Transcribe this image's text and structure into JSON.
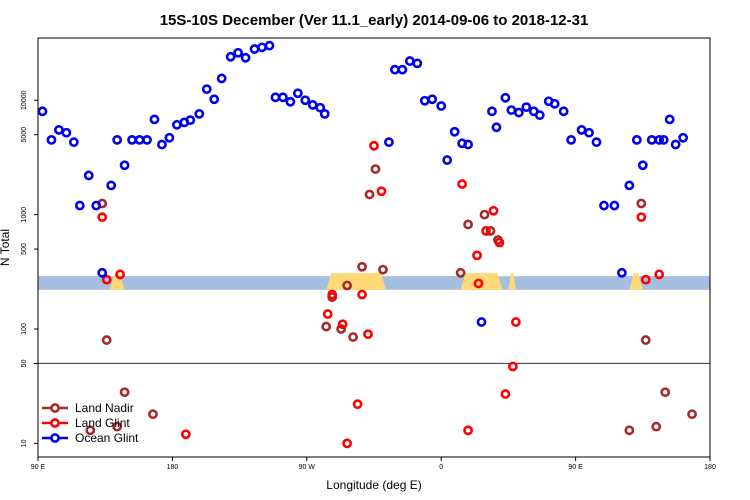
{
  "chart_data": {
    "type": "scatter",
    "title": "15S-10S December (Ver 11.1_early)   2014-09-06 to 2018-12-31",
    "xlabel": "Longitude (deg E)",
    "ylabel": "N Total",
    "y_scale": "log",
    "ylim": [
      7.6,
      35000
    ],
    "xlim": [
      0,
      450
    ],
    "x_ticks": [
      {
        "value": 0,
        "label": "90 E"
      },
      {
        "value": 90,
        "label": "180"
      },
      {
        "value": 180,
        "label": "90 W"
      },
      {
        "value": 270,
        "label": "0"
      },
      {
        "value": 360,
        "label": "90 E"
      },
      {
        "value": 450,
        "label": "180"
      }
    ],
    "y_ticks": [
      {
        "value": 10,
        "label": "10"
      },
      {
        "value": 50,
        "label": "50"
      },
      {
        "value": 100,
        "label": "100"
      },
      {
        "value": 500,
        "label": "500"
      },
      {
        "value": 1000,
        "label": "1000"
      },
      {
        "value": 5000,
        "label": "5000"
      },
      {
        "value": 10000,
        "label": "10000"
      }
    ],
    "reference_line": 50,
    "land_band": {
      "y_range": [
        220,
        290
      ],
      "color": "#a6bfe0",
      "land_color": "#ffd977",
      "land_segments": [
        [
          48,
          58
        ],
        [
          193,
          233
        ],
        [
          283,
          311
        ],
        [
          315,
          320
        ],
        [
          396,
          405
        ]
      ]
    },
    "legend": {
      "position": "bottom-left",
      "entries": [
        {
          "name": "Land Nadir",
          "color": "#a52a2a"
        },
        {
          "name": "Land Glint",
          "color": "#ff0000"
        },
        {
          "name": "Ocean Glint",
          "color": "#0000ee"
        }
      ]
    },
    "series": [
      {
        "name": "Land Nadir",
        "color": "#a52a2a",
        "points": [
          [
            35,
            13
          ],
          [
            43,
            1250
          ],
          [
            46,
            80
          ],
          [
            53,
            14
          ],
          [
            58,
            28
          ],
          [
            77,
            18
          ],
          [
            193,
            105
          ],
          [
            197,
            190
          ],
          [
            203,
            100
          ],
          [
            207,
            240
          ],
          [
            211,
            85
          ],
          [
            217,
            350
          ],
          [
            222,
            1500
          ],
          [
            226,
            2500
          ],
          [
            231,
            330
          ],
          [
            283,
            310
          ],
          [
            288,
            820
          ],
          [
            299,
            1000
          ],
          [
            303,
            720
          ],
          [
            308,
            600
          ],
          [
            396,
            13
          ],
          [
            404,
            1250
          ],
          [
            407,
            80
          ],
          [
            414,
            14
          ],
          [
            420,
            28
          ],
          [
            438,
            18
          ]
        ]
      },
      {
        "name": "Land Glint",
        "color": "#ff0000",
        "points": [
          [
            43,
            950
          ],
          [
            46,
            270
          ],
          [
            55,
            300
          ],
          [
            99,
            12
          ],
          [
            194,
            135
          ],
          [
            197,
            200
          ],
          [
            204,
            110
          ],
          [
            207,
            10
          ],
          [
            214,
            22
          ],
          [
            217,
            200
          ],
          [
            221,
            90
          ],
          [
            225,
            4000
          ],
          [
            230,
            1600
          ],
          [
            284,
            1850
          ],
          [
            288,
            13
          ],
          [
            294,
            440
          ],
          [
            295,
            250
          ],
          [
            300,
            720
          ],
          [
            305,
            1080
          ],
          [
            309,
            570
          ],
          [
            313,
            27
          ],
          [
            318,
            47
          ],
          [
            320,
            115
          ],
          [
            404,
            950
          ],
          [
            407,
            270
          ],
          [
            416,
            300
          ]
        ]
      },
      {
        "name": "Ocean Glint",
        "color": "#0000ee",
        "points": [
          [
            3,
            8000
          ],
          [
            9,
            4500
          ],
          [
            14,
            5500
          ],
          [
            19,
            5200
          ],
          [
            24,
            4300
          ],
          [
            28,
            1200
          ],
          [
            34,
            2200
          ],
          [
            39,
            1200
          ],
          [
            43,
            310
          ],
          [
            49,
            1800
          ],
          [
            53,
            4500
          ],
          [
            58,
            2700
          ],
          [
            63,
            4500
          ],
          [
            68,
            4500
          ],
          [
            73,
            4500
          ],
          [
            78,
            6800
          ],
          [
            83,
            4100
          ],
          [
            88,
            4700
          ],
          [
            93,
            6100
          ],
          [
            98,
            6400
          ],
          [
            102,
            6700
          ],
          [
            108,
            7600
          ],
          [
            113,
            12500
          ],
          [
            118,
            10200
          ],
          [
            123,
            15500
          ],
          [
            129,
            24000
          ],
          [
            134,
            26000
          ],
          [
            139,
            23500
          ],
          [
            145,
            28000
          ],
          [
            150,
            29000
          ],
          [
            155,
            30000
          ],
          [
            159,
            10600
          ],
          [
            164,
            10600
          ],
          [
            169,
            9700
          ],
          [
            174,
            11500
          ],
          [
            179,
            10000
          ],
          [
            184,
            9100
          ],
          [
            189,
            8600
          ],
          [
            192,
            7600
          ],
          [
            235,
            4300
          ],
          [
            239,
            18500
          ],
          [
            244,
            18500
          ],
          [
            249,
            22000
          ],
          [
            254,
            21000
          ],
          [
            259,
            9900
          ],
          [
            264,
            10200
          ],
          [
            270,
            8900
          ],
          [
            274,
            3000
          ],
          [
            279,
            5300
          ],
          [
            284,
            4200
          ],
          [
            288,
            4100
          ],
          [
            297,
            115
          ],
          [
            304,
            8000
          ],
          [
            307,
            5800
          ],
          [
            313,
            10500
          ],
          [
            317,
            8200
          ],
          [
            322,
            7800
          ],
          [
            327,
            8700
          ],
          [
            332,
            8000
          ],
          [
            336,
            7400
          ],
          [
            342,
            9800
          ],
          [
            346,
            9300
          ],
          [
            352,
            8000
          ],
          [
            357,
            4500
          ],
          [
            364,
            5500
          ],
          [
            369,
            5200
          ],
          [
            374,
            4300
          ],
          [
            379,
            1200
          ],
          [
            386,
            1200
          ],
          [
            391,
            310
          ],
          [
            396,
            1800
          ],
          [
            401,
            4500
          ],
          [
            405,
            2700
          ],
          [
            411,
            4500
          ],
          [
            416,
            4500
          ],
          [
            419,
            4500
          ],
          [
            423,
            6800
          ],
          [
            427,
            4100
          ],
          [
            432,
            4700
          ]
        ]
      }
    ]
  }
}
